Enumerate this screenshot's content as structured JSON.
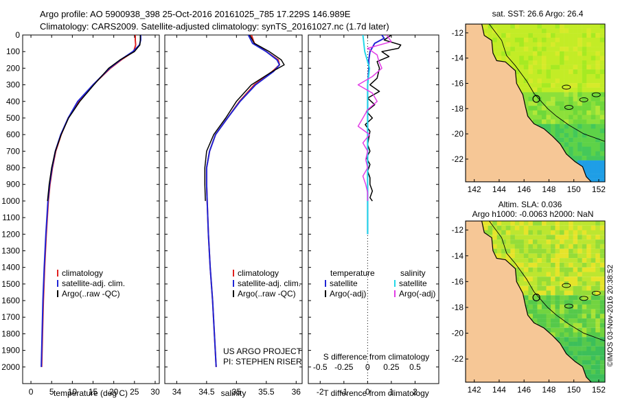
{
  "header": {
    "line1": "Argo profile: AO 5900938_398 25-Oct-2016 20161025_785 17.229S 146.989E",
    "line2": "Climatology: CARS2009. Satellite-adjusted climatology: synTS_20161027.nc (1.7d later)"
  },
  "colors": {
    "climatology": "#e0201e",
    "satellite": "#1f24d4",
    "argo": "#000000",
    "sat_salinity": "#22d8e8",
    "argo_salinity": "#e23ce6",
    "land": "#f6c796"
  },
  "depth_axis": {
    "ticks": [
      0,
      100,
      200,
      300,
      400,
      500,
      600,
      700,
      800,
      900,
      1000,
      1100,
      1200,
      1300,
      1400,
      1500,
      1600,
      1700,
      1800,
      1900,
      2000
    ],
    "ylim": [
      0,
      2100
    ]
  },
  "chart_data": [
    {
      "id": "temperature",
      "type": "line",
      "xlabel": "temperature (deg C)",
      "xlim": [
        -2,
        31
      ],
      "xticks": [
        0,
        5,
        10,
        15,
        20,
        25,
        30
      ],
      "legend": [
        "climatology",
        "satellite-adj. clim.",
        "Argo(..raw -QC)"
      ],
      "series": [
        {
          "name": "climatology",
          "depth": [
            0,
            30,
            60,
            100,
            150,
            200,
            300,
            400,
            500,
            600,
            700,
            800,
            900,
            1000,
            1200,
            1400,
            1600,
            1800,
            2000
          ],
          "values": [
            25.2,
            25.2,
            25.3,
            24.8,
            21.8,
            19.2,
            15.0,
            11.5,
            9.0,
            7.3,
            6.0,
            5.2,
            4.6,
            4.2,
            3.7,
            3.3,
            3.0,
            2.8,
            2.6
          ]
        },
        {
          "name": "satellite-adj. clim.",
          "depth": [
            0,
            30,
            60,
            100,
            150,
            200,
            300,
            400,
            500,
            600,
            700,
            800,
            900,
            1000,
            1200,
            1400,
            1600,
            1800,
            2000
          ],
          "values": [
            26.5,
            26.5,
            26.2,
            24.6,
            21.6,
            19.0,
            15.0,
            11.3,
            9.0,
            7.2,
            5.9,
            5.1,
            4.5,
            4.1,
            3.6,
            3.2,
            2.9,
            2.7,
            2.5
          ]
        },
        {
          "name": "Argo(..raw -QC)",
          "depth": [
            0,
            30,
            60,
            100,
            150,
            200,
            300,
            400,
            500,
            600,
            700,
            800,
            900,
            1000
          ],
          "values": [
            26.4,
            26.4,
            26.3,
            25.0,
            21.5,
            18.8,
            15.2,
            11.8,
            9.1,
            7.3,
            5.9,
            5.0,
            4.4,
            4.0
          ]
        }
      ]
    },
    {
      "id": "salinity",
      "type": "line",
      "xlabel": "salinity",
      "xlim": [
        33.8,
        36.1
      ],
      "xticks": [
        34,
        34.5,
        35,
        35.5,
        36
      ],
      "legend": [
        "climatology",
        "satellite-adj. clim.",
        "Argo(..raw -QC)"
      ],
      "series": [
        {
          "name": "climatology",
          "depth": [
            0,
            50,
            100,
            150,
            180,
            220,
            300,
            400,
            500,
            600,
            700,
            800,
            900,
            1000,
            1200,
            1400,
            1600,
            1800,
            2000
          ],
          "values": [
            35.25,
            35.3,
            35.5,
            35.7,
            35.72,
            35.6,
            35.3,
            35.05,
            34.85,
            34.65,
            34.55,
            34.5,
            34.5,
            34.51,
            34.53,
            34.56,
            34.6,
            34.63,
            34.66
          ]
        },
        {
          "name": "satellite-adj. clim.",
          "depth": [
            0,
            50,
            100,
            150,
            180,
            220,
            300,
            400,
            500,
            600,
            700,
            800,
            900,
            1000,
            1200,
            1400,
            1600,
            1800,
            2000
          ],
          "values": [
            35.2,
            35.27,
            35.5,
            35.68,
            35.72,
            35.62,
            35.32,
            35.06,
            34.85,
            34.65,
            34.55,
            34.5,
            34.5,
            34.51,
            34.53,
            34.56,
            34.6,
            34.63,
            34.66
          ]
        },
        {
          "name": "Argo(..raw -QC)",
          "depth": [
            0,
            50,
            100,
            150,
            180,
            220,
            300,
            400,
            500,
            600,
            700,
            800,
            900,
            1000
          ],
          "values": [
            35.22,
            35.3,
            35.55,
            35.75,
            35.8,
            35.6,
            35.25,
            35.0,
            34.82,
            34.62,
            34.5,
            34.47,
            34.47,
            34.48
          ]
        }
      ],
      "annotations": [
        "US ARGO PROJECT",
        "PI: STEPHEN RISER"
      ]
    },
    {
      "id": "difference",
      "type": "line",
      "xlabel": "T difference from climatology",
      "xlabel_top": "S difference from climatology",
      "xlim": [
        -2.5,
        3
      ],
      "xticks": [
        -2,
        -1,
        0,
        1,
        2
      ],
      "xticks_salinity": [
        "-0.5",
        "-0.25",
        "0",
        "0.25",
        "0.5"
      ],
      "legend_titles": [
        "temperature",
        "salinity"
      ],
      "legend": [
        "satellite",
        "Argo(-adj)",
        "satellite",
        "Argo(-adj)"
      ],
      "series": [
        {
          "name": "satellite",
          "variable": "temperature",
          "depth": [
            0,
            20,
            50,
            100,
            150,
            200,
            300,
            500,
            700,
            900,
            1000,
            1200
          ],
          "values": [
            0.6,
            0.7,
            0.3,
            0.1,
            0.05,
            0.05,
            0.0,
            0.0,
            0.0,
            0.0,
            0.0,
            0.0
          ]
        },
        {
          "name": "Argo(-adj)",
          "variable": "temperature",
          "depth": [
            0,
            30,
            60,
            80,
            100,
            130,
            160,
            200,
            260,
            300,
            340,
            380,
            420,
            460,
            500,
            540,
            580,
            620,
            660,
            700,
            740,
            780,
            820,
            860,
            900,
            940,
            980,
            1000
          ],
          "values": [
            1.0,
            0.7,
            1.4,
            1.3,
            0.6,
            0.9,
            0.4,
            0.5,
            0.4,
            0.1,
            0.5,
            0.0,
            0.3,
            -0.05,
            0.2,
            -0.1,
            0.1,
            0.05,
            0.0,
            0.1,
            -0.05,
            0.1,
            0.0,
            0.1,
            0.1,
            0.2,
            0.1,
            0.2
          ]
        },
        {
          "name": "satellite",
          "variable": "salinity",
          "depth": [
            0,
            100,
            200,
            300,
            400,
            500,
            600,
            700,
            800,
            900,
            1000,
            1100,
            1200
          ],
          "values": [
            -0.05,
            -0.03,
            0.02,
            0.0,
            0.0,
            0.0,
            0.0,
            0.0,
            0.0,
            0.0,
            0.0,
            0.0,
            0.0
          ]
        },
        {
          "name": "Argo(-adj)",
          "variable": "salinity",
          "depth": [
            0,
            40,
            80,
            120,
            160,
            200,
            250,
            300,
            350,
            400,
            450,
            500,
            550,
            600,
            650,
            700,
            750,
            800,
            850,
            900,
            950,
            1000
          ],
          "values": [
            0.2,
            0.25,
            0.0,
            0.1,
            0.12,
            0.15,
            0.05,
            -0.1,
            0.05,
            0.1,
            0.0,
            -0.05,
            -0.1,
            0.02,
            -0.05,
            0.0,
            -0.02,
            0.0,
            -0.05,
            -0.02,
            0.0,
            0.0
          ]
        }
      ]
    },
    {
      "id": "sst-map",
      "type": "heatmap",
      "title": "sat. SST: 26.6 Argo: 26.4",
      "xticks": [
        142,
        144,
        146,
        148,
        150,
        152
      ],
      "yticks": [
        -12,
        -14,
        -16,
        -18,
        -20,
        -22
      ],
      "xlim": [
        141.3,
        152.5
      ],
      "ylim": [
        -23.8,
        -11.3
      ],
      "float_position": {
        "lon": 146.989,
        "lat": -17.229
      }
    },
    {
      "id": "sla-map",
      "type": "heatmap",
      "title": "Altim. SLA: 0.036",
      "subtitle": "Argo h1000: -0.0063 h2000: NaN",
      "xticks": [
        142,
        144,
        146,
        148,
        150,
        152
      ],
      "yticks": [
        -12,
        -14,
        -16,
        -18,
        -20,
        -22
      ],
      "xlim": [
        141.3,
        152.5
      ],
      "ylim": [
        -23.8,
        -11.3
      ],
      "float_position": {
        "lon": 146.989,
        "lat": -17.229
      }
    }
  ],
  "footer": {
    "credit": "©IMOS 03-Nov-2016 20:38:52"
  }
}
